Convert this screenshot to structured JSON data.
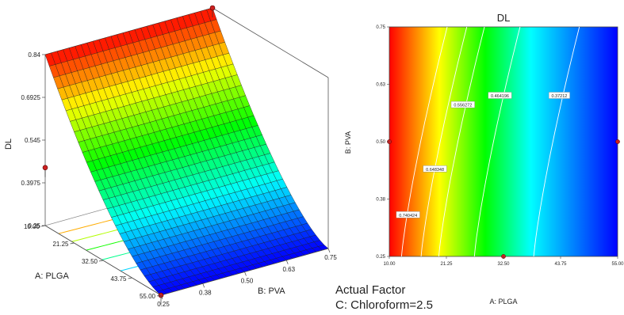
{
  "chart_data": [
    {
      "type": "surface",
      "zlabel": "DL",
      "xlabel": "A: PLGA",
      "ylabel": "B: PVA",
      "x_ticks": [
        "10.00",
        "21.25",
        "32.50",
        "43.75",
        "55.00"
      ],
      "y_ticks": [
        "0.25",
        "0.38",
        "0.50",
        "0.63",
        "0.75"
      ],
      "z_ticks": [
        "0.84",
        "0.6925",
        "0.545",
        "0.3975",
        "0.25"
      ],
      "xlim": [
        10,
        55
      ],
      "ylim": [
        0.25,
        0.75
      ],
      "zlim": [
        0.25,
        0.84
      ],
      "corner_values": [
        {
          "plga": 10,
          "pva": 0.75,
          "dl": 0.84
        },
        {
          "plga": 55,
          "pva": 0.75,
          "dl": 0.25
        },
        {
          "plga": 10,
          "pva": 0.25,
          "dl": 0.84
        },
        {
          "plga": 55,
          "pva": 0.25,
          "dl": 0.25
        }
      ],
      "design_points": [
        {
          "plga": 10,
          "pva": 0.75,
          "dl": 0.84
        },
        {
          "plga": 10,
          "pva": 0.25,
          "dl": 0.45
        },
        {
          "plga": 55,
          "pva": 0.25,
          "dl": 0.25
        }
      ],
      "colormap": [
        "#ff0000",
        "#ffff00",
        "#00ff00",
        "#00ffff",
        "#0000ff"
      ]
    },
    {
      "type": "contour",
      "title": "DL",
      "xlabel": "A: PLGA",
      "ylabel": "B: PVA",
      "x_ticks": [
        "10.00",
        "21.25",
        "32.50",
        "43.75",
        "55.00"
      ],
      "y_ticks": [
        "0.25",
        "0.38",
        "0.50",
        "0.63",
        "0.75"
      ],
      "xlim": [
        10,
        55
      ],
      "ylim": [
        0.25,
        0.75
      ],
      "contours": [
        {
          "level": "0.740424",
          "label_plga": 13.7,
          "label_pva": 0.34
        },
        {
          "level": "0.648348",
          "label_plga": 19.0,
          "label_pva": 0.44
        },
        {
          "level": "0.556272",
          "label_plga": 24.5,
          "label_pva": 0.58
        },
        {
          "level": "0.464196",
          "label_plga": 31.8,
          "label_pva": 0.6
        },
        {
          "level": "0.37212",
          "label_plga": 43.5,
          "label_pva": 0.6
        }
      ],
      "design_points": [
        {
          "plga": 10,
          "pva": 0.5
        },
        {
          "plga": 55,
          "pva": 0.5
        },
        {
          "plga": 32.5,
          "pva": 0.25
        }
      ],
      "colormap": [
        "#ff0000",
        "#ffff00",
        "#00ff00",
        "#00ffff",
        "#0000ff"
      ]
    }
  ],
  "factor": {
    "heading": "Actual Factor",
    "value": "C: Chloroform=2.5"
  }
}
